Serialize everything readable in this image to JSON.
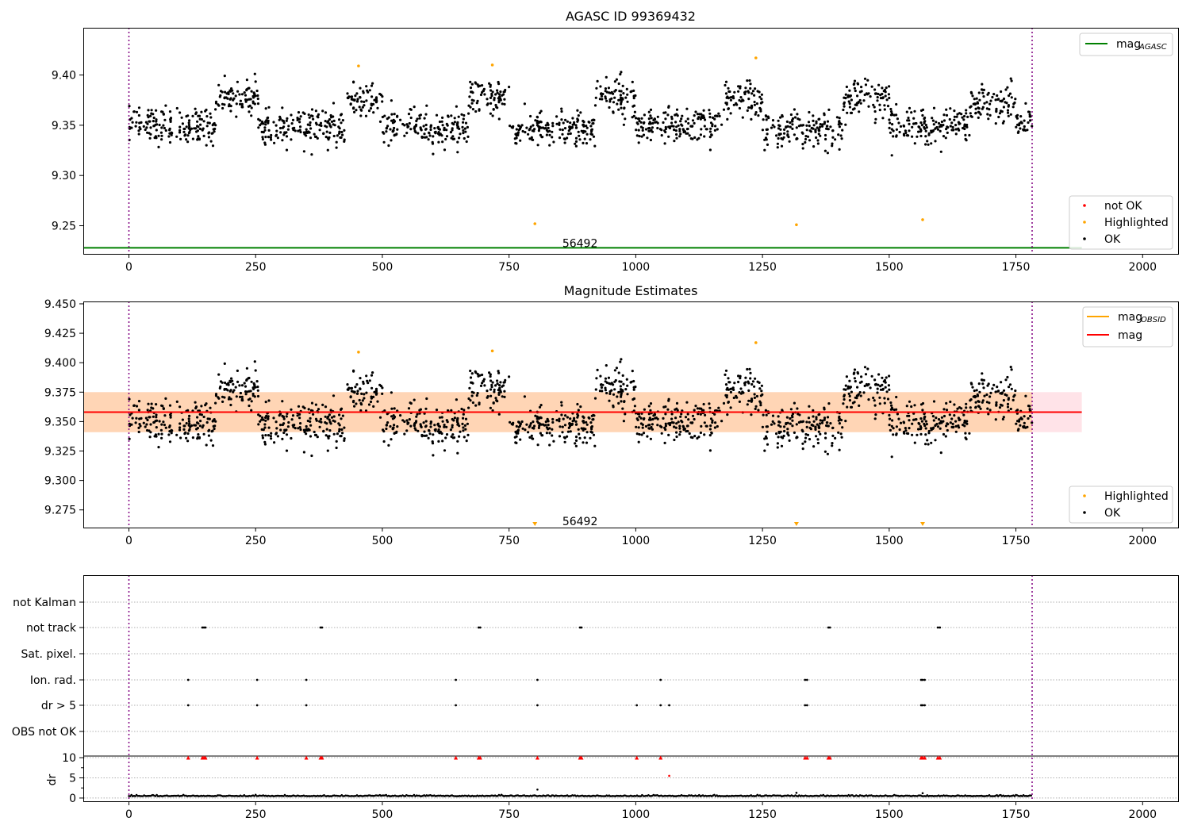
{
  "chart_data": [
    {
      "type": "scatter",
      "title": "AGASC ID 99369432",
      "xlim": [
        -90,
        2070
      ],
      "ylim": [
        9.222,
        9.447
      ],
      "xticks": [
        0,
        250,
        500,
        750,
        1000,
        1250,
        1500,
        1750,
        2000
      ],
      "yticks": [
        9.25,
        9.3,
        9.35,
        9.4
      ],
      "ytick_labels": [
        "9.25",
        "9.30",
        "9.35",
        "9.40"
      ],
      "vlines": [
        0,
        1782
      ],
      "obsid_label": {
        "x": 890,
        "y": 9.228,
        "text": "56492"
      },
      "hline": {
        "name": "mag_AGASC",
        "y": 9.228,
        "x0": -90,
        "x1": 1880,
        "color": "#008000"
      },
      "legend_lines": [
        {
          "label": "mag",
          "sub": "AGASC",
          "color": "#008000"
        }
      ],
      "legend_points": [
        {
          "label": "not OK",
          "color": "#ff0000"
        },
        {
          "label": "Highlighted",
          "color": "#ffa500"
        },
        {
          "label": "OK",
          "color": "#000000"
        }
      ],
      "highlighted_points": {
        "x": [
          453,
          717,
          801,
          1237,
          1317,
          1566
        ],
        "y": [
          9.409,
          9.41,
          9.252,
          9.417,
          9.251,
          9.256
        ]
      },
      "ok_segments": [
        {
          "x0": 0,
          "x1": 170,
          "mean": 9.35,
          "sd": 0.009
        },
        {
          "x0": 170,
          "x1": 255,
          "mean": 9.378,
          "sd": 0.008
        },
        {
          "x0": 255,
          "x1": 430,
          "mean": 9.347,
          "sd": 0.009
        },
        {
          "x0": 430,
          "x1": 500,
          "mean": 9.374,
          "sd": 0.008
        },
        {
          "x0": 500,
          "x1": 670,
          "mean": 9.347,
          "sd": 0.009
        },
        {
          "x0": 670,
          "x1": 750,
          "mean": 9.378,
          "sd": 0.009
        },
        {
          "x0": 750,
          "x1": 920,
          "mean": 9.346,
          "sd": 0.008
        },
        {
          "x0": 920,
          "x1": 1000,
          "mean": 9.379,
          "sd": 0.01
        },
        {
          "x0": 1000,
          "x1": 1170,
          "mean": 9.349,
          "sd": 0.009
        },
        {
          "x0": 1170,
          "x1": 1250,
          "mean": 9.374,
          "sd": 0.009
        },
        {
          "x0": 1250,
          "x1": 1410,
          "mean": 9.346,
          "sd": 0.009
        },
        {
          "x0": 1410,
          "x1": 1500,
          "mean": 9.376,
          "sd": 0.009
        },
        {
          "x0": 1500,
          "x1": 1660,
          "mean": 9.35,
          "sd": 0.009
        },
        {
          "x0": 1660,
          "x1": 1750,
          "mean": 9.373,
          "sd": 0.009
        },
        {
          "x0": 1750,
          "x1": 1782,
          "mean": 9.35,
          "sd": 0.008
        }
      ]
    },
    {
      "type": "scatter",
      "title": "Magnitude Estimates",
      "xlim": [
        -90,
        2070
      ],
      "ylim": [
        9.26,
        9.452
      ],
      "xticks": [
        0,
        250,
        500,
        750,
        1000,
        1250,
        1500,
        1750,
        2000
      ],
      "yticks": [
        9.275,
        9.3,
        9.325,
        9.35,
        9.375,
        9.4,
        9.425,
        9.45
      ],
      "ytick_labels": [
        "9.275",
        "9.300",
        "9.325",
        "9.350",
        "9.375",
        "9.400",
        "9.425",
        "9.450"
      ],
      "vlines": [
        0,
        1782
      ],
      "obsid_label": {
        "x": 890,
        "y": 9.262,
        "text": "56492"
      },
      "mag_line": {
        "y": 9.358,
        "x0": -90,
        "x1": 1880,
        "color": "#ff0000"
      },
      "bands": [
        {
          "y0": 9.341,
          "y1": 9.375,
          "x0": -90,
          "x1": 1880,
          "color": "#ffc0cb",
          "opacity": 0.45
        },
        {
          "y0": 9.341,
          "y1": 9.375,
          "x0": -90,
          "x1": 1782,
          "color": "#ffa500",
          "opacity": 0.22
        }
      ],
      "legend_lines": [
        {
          "label": "mag",
          "sub": "OBSID",
          "color": "#ffa500"
        },
        {
          "label": "mag",
          "sub": "",
          "color": "#ff0000"
        }
      ],
      "legend_points": [
        {
          "label": "Highlighted",
          "color": "#ffa500"
        },
        {
          "label": "OK",
          "color": "#000000"
        }
      ],
      "highlighted_points": {
        "x": [
          453,
          717,
          1237
        ],
        "y": [
          9.409,
          9.41,
          9.417
        ]
      },
      "offscale_markers": {
        "x": [
          801,
          1317,
          1566
        ]
      },
      "ok_from_panel": 0
    },
    {
      "type": "scatter",
      "title": "",
      "xlim": [
        -90,
        2070
      ],
      "vlines": [
        0,
        1782
      ],
      "xticks": [
        0,
        250,
        500,
        750,
        1000,
        1250,
        1500,
        1750,
        2000
      ],
      "flag_rows": [
        "not Kalman",
        "not track",
        "Sat. pixel.",
        "Ion. rad.",
        "dr > 5",
        "OBS not OK"
      ],
      "flags": {
        "not Kalman": [],
        "not track": [
          145,
          148,
          151,
          378,
          381,
          690,
          693,
          890,
          893,
          1380,
          1383,
          1596,
          1600
        ],
        "Sat. pixel.": [],
        "Ion. rad.": [
          117,
          253,
          350,
          645,
          806,
          1049,
          1334,
          1338,
          1563,
          1566,
          1570
        ],
        "dr > 5": [
          117,
          253,
          350,
          645,
          806,
          1002,
          1049,
          1066,
          1334,
          1338,
          1563,
          1566,
          1570
        ],
        "OBS not OK": []
      },
      "dr": {
        "ylabel": "dr",
        "yticks": [
          0,
          5,
          10
        ],
        "ylim": [
          -0.8,
          10.4
        ],
        "clipped_x": [
          117,
          145,
          148,
          151,
          253,
          350,
          378,
          381,
          645,
          690,
          693,
          806,
          890,
          893,
          1002,
          1049,
          1334,
          1338,
          1380,
          1383,
          1563,
          1566,
          1570,
          1596,
          1600
        ],
        "outliers": {
          "x": [
            806,
            1066,
            1317,
            1566
          ],
          "y": [
            2.1,
            5.5,
            1.3,
            1.2
          ]
        },
        "baseline_mean": 0.45
      }
    }
  ]
}
